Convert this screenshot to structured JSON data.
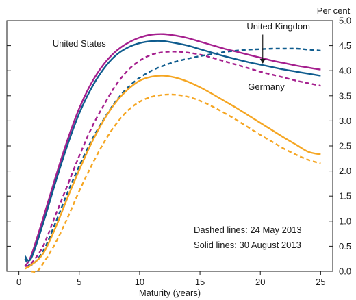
{
  "chart_data": {
    "type": "line",
    "x_label": "Maturity (years)",
    "y_unit_label": "Per cent",
    "xlim": [
      -1,
      26
    ],
    "ylim": [
      0,
      5
    ],
    "x_ticks": [
      0,
      5,
      10,
      15,
      20,
      25
    ],
    "y_ticks": [
      0,
      0.5,
      1.0,
      1.5,
      2.0,
      2.5,
      3.0,
      3.5,
      4.0,
      4.5,
      5.0
    ],
    "y_tick_labels": [
      "0.0",
      "0.5",
      "1.0",
      "1.5",
      "2.0",
      "2.5",
      "3.0",
      "3.5",
      "4.0",
      "4.5",
      "5.0"
    ],
    "grid": false,
    "y_axis_side": "right",
    "mirror_y_ticks_left": true,
    "series": [
      {
        "country": "United States",
        "date": "30 August 2013",
        "style": "solid",
        "color": "#a51f8e",
        "x": [
          0.5,
          1,
          2,
          3,
          4,
          5,
          6,
          7,
          8,
          9,
          10,
          11,
          12,
          13,
          14,
          15,
          16,
          17,
          18,
          19,
          20,
          21,
          22,
          23,
          24,
          25
        ],
        "y": [
          0.1,
          0.3,
          1.05,
          1.85,
          2.6,
          3.25,
          3.75,
          4.12,
          4.38,
          4.55,
          4.66,
          4.72,
          4.73,
          4.7,
          4.65,
          4.58,
          4.51,
          4.44,
          4.38,
          4.32,
          4.26,
          4.2,
          4.15,
          4.1,
          4.06,
          4.02
        ]
      },
      {
        "country": "United Kingdom",
        "date": "30 August 2013",
        "style": "solid",
        "color": "#0f5c8e",
        "x": [
          0.5,
          1,
          2,
          3,
          4,
          5,
          6,
          7,
          8,
          9,
          10,
          11,
          12,
          13,
          14,
          15,
          16,
          17,
          18,
          19,
          20,
          21,
          22,
          23,
          24,
          25
        ],
        "y": [
          0.3,
          0.25,
          0.95,
          1.75,
          2.5,
          3.15,
          3.65,
          4.03,
          4.3,
          4.46,
          4.55,
          4.59,
          4.59,
          4.55,
          4.5,
          4.43,
          4.36,
          4.29,
          4.23,
          4.17,
          4.12,
          4.07,
          4.02,
          3.98,
          3.94,
          3.9
        ]
      },
      {
        "country": "United States",
        "date": "24 May 2013",
        "style": "dashed",
        "color": "#a51f8e",
        "x": [
          0.5,
          1,
          2,
          3,
          4,
          5,
          6,
          7,
          8,
          9,
          10,
          11,
          12,
          13,
          14,
          15,
          16,
          17,
          18,
          19,
          20,
          21,
          22,
          23,
          24,
          25
        ],
        "y": [
          0.1,
          0.15,
          0.5,
          1.1,
          1.7,
          2.3,
          2.85,
          3.3,
          3.7,
          4.0,
          4.2,
          4.32,
          4.37,
          4.38,
          4.36,
          4.32,
          4.26,
          4.19,
          4.12,
          4.05,
          3.98,
          3.92,
          3.86,
          3.8,
          3.75,
          3.7
        ]
      },
      {
        "country": "United Kingdom",
        "date": "24 May 2013",
        "style": "dashed",
        "color": "#0f5c8e",
        "x": [
          0.5,
          1,
          2,
          3,
          4,
          5,
          6,
          7,
          8,
          9,
          10,
          11,
          12,
          13,
          14,
          15,
          16,
          17,
          18,
          19,
          20,
          21,
          22,
          23,
          24,
          25
        ],
        "y": [
          0.25,
          0.12,
          0.4,
          0.95,
          1.55,
          2.1,
          2.6,
          3.02,
          3.38,
          3.66,
          3.86,
          4.0,
          4.1,
          4.18,
          4.24,
          4.29,
          4.33,
          4.37,
          4.4,
          4.42,
          4.43,
          4.44,
          4.44,
          4.44,
          4.42,
          4.4
        ]
      },
      {
        "country": "Germany",
        "date": "30 August 2013",
        "style": "solid",
        "color": "#f5a623",
        "x": [
          0.5,
          1,
          2,
          3,
          4,
          5,
          6,
          7,
          8,
          9,
          10,
          11,
          12,
          13,
          14,
          15,
          16,
          17,
          18,
          19,
          20,
          21,
          22,
          23,
          24,
          25
        ],
        "y": [
          0.05,
          0.12,
          0.35,
          0.85,
          1.45,
          2.02,
          2.55,
          3.0,
          3.36,
          3.62,
          3.8,
          3.88,
          3.9,
          3.86,
          3.78,
          3.67,
          3.54,
          3.4,
          3.26,
          3.11,
          2.96,
          2.81,
          2.66,
          2.52,
          2.38,
          2.33
        ]
      },
      {
        "country": "Germany",
        "date": "24 May 2013",
        "style": "dashed",
        "color": "#f5a623",
        "x": [
          1,
          1.5,
          2,
          3,
          4,
          5,
          6,
          7,
          8,
          9,
          10,
          11,
          12,
          13,
          14,
          15,
          16,
          17,
          18,
          19,
          20,
          21,
          22,
          23,
          24,
          25
        ],
        "y": [
          0.0,
          0.0,
          0.15,
          0.55,
          1.05,
          1.6,
          2.1,
          2.55,
          2.92,
          3.2,
          3.38,
          3.48,
          3.52,
          3.52,
          3.48,
          3.4,
          3.29,
          3.16,
          3.02,
          2.87,
          2.72,
          2.58,
          2.44,
          2.32,
          2.22,
          2.15
        ]
      }
    ],
    "labels": [
      {
        "text": "United States",
        "x": 5,
        "y": 4.48
      },
      {
        "text": "United Kingdom",
        "x": 21.5,
        "y": 4.82
      },
      {
        "text": "Germany",
        "x": 20.5,
        "y": 3.62
      }
    ],
    "arrow": {
      "from": [
        20.2,
        4.72
      ],
      "to": [
        20.2,
        4.14
      ]
    },
    "notes": [
      "Dashed lines:  24 May 2013",
      "Solid lines:  30 August 2013"
    ]
  }
}
